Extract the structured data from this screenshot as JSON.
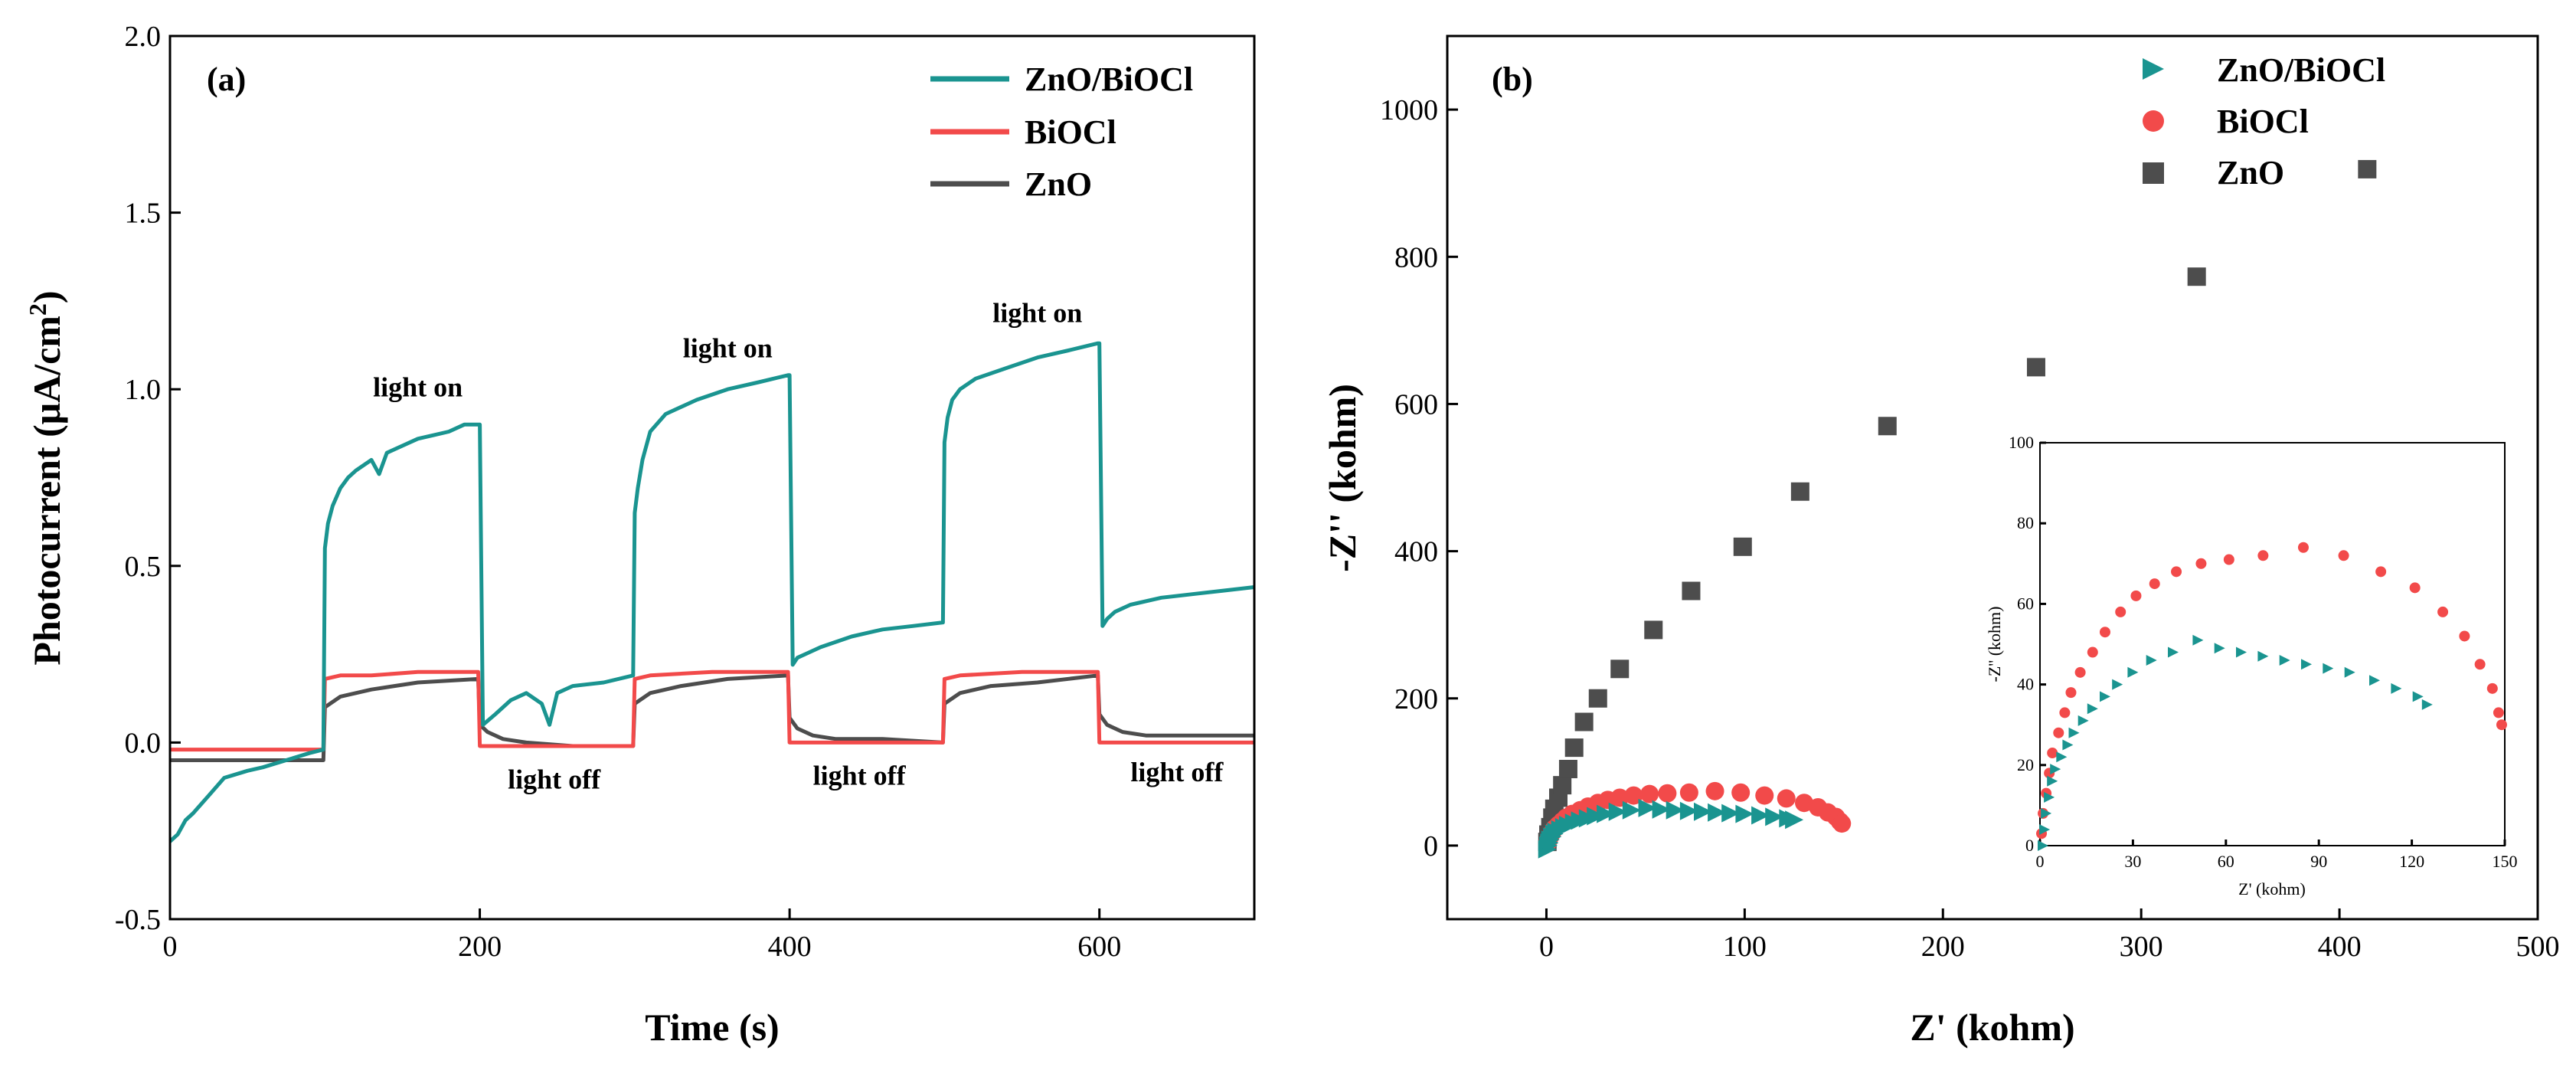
{
  "colors": {
    "zno_biocl": "#1a9490",
    "biocl": "#f24a4a",
    "zno": "#4d4d4d"
  },
  "chart_data": [
    {
      "type": "line",
      "panel_label": "(a)",
      "xlabel": "Time (s)",
      "ylabel_main": "Photocurrent (μA/cm",
      "ylabel_sup": "2",
      "ylabel_end": ")",
      "xlim": [
        0,
        700
      ],
      "ylim": [
        -0.5,
        2.0
      ],
      "xticks": [
        0,
        200,
        400,
        600
      ],
      "xtick_labels": [
        "0",
        "200",
        "400",
        "600"
      ],
      "yticks": [
        -0.5,
        0.0,
        0.5,
        1.0,
        1.5,
        2.0
      ],
      "ytick_labels": [
        "-0.5",
        "0.0",
        "0.5",
        "1.0",
        "1.5",
        "2.0"
      ],
      "legend": [
        "ZnO/BiOCl",
        "BiOCl",
        "ZnO"
      ],
      "annotations": [
        {
          "text": "light on",
          "x": 160,
          "y": 0.98
        },
        {
          "text": "light on",
          "x": 360,
          "y": 1.09
        },
        {
          "text": "light on",
          "x": 560,
          "y": 1.19
        },
        {
          "text": "light off",
          "x": 248,
          "y": -0.13
        },
        {
          "text": "light off",
          "x": 445,
          "y": -0.12
        },
        {
          "text": "light off",
          "x": 650,
          "y": -0.11
        }
      ],
      "series": [
        {
          "name": "ZnO/BiOCl",
          "x": [
            0,
            5,
            10,
            15,
            25,
            35,
            50,
            60,
            75,
            90,
            99,
            100,
            102,
            105,
            110,
            115,
            120,
            130,
            135,
            140,
            150,
            160,
            170,
            180,
            190,
            199,
            200,
            202,
            210,
            220,
            230,
            240,
            245,
            250,
            260,
            280,
            299,
            300,
            302,
            305,
            310,
            320,
            340,
            360,
            380,
            399,
            400,
            402,
            405,
            410,
            420,
            440,
            460,
            480,
            499,
            500,
            502,
            505,
            510,
            520,
            540,
            560,
            580,
            599,
            600,
            602,
            605,
            610,
            620,
            640,
            660,
            680,
            700
          ],
          "y": [
            -0.28,
            -0.26,
            -0.22,
            -0.2,
            -0.15,
            -0.1,
            -0.08,
            -0.07,
            -0.05,
            -0.03,
            -0.02,
            0.55,
            0.62,
            0.67,
            0.72,
            0.75,
            0.77,
            0.8,
            0.76,
            0.82,
            0.84,
            0.86,
            0.87,
            0.88,
            0.9,
            0.9,
            0.9,
            0.05,
            0.08,
            0.12,
            0.14,
            0.11,
            0.05,
            0.14,
            0.16,
            0.17,
            0.19,
            0.65,
            0.72,
            0.8,
            0.88,
            0.93,
            0.97,
            1.0,
            1.02,
            1.04,
            1.04,
            0.22,
            0.24,
            0.25,
            0.27,
            0.3,
            0.32,
            0.33,
            0.34,
            0.85,
            0.92,
            0.97,
            1.0,
            1.03,
            1.06,
            1.09,
            1.11,
            1.13,
            1.13,
            0.33,
            0.35,
            0.37,
            0.39,
            0.41,
            0.42,
            0.43,
            0.44
          ]
        },
        {
          "name": "BiOCl",
          "x": [
            0,
            50,
            99,
            100,
            110,
            130,
            160,
            199,
            200,
            210,
            250,
            299,
            300,
            310,
            350,
            399,
            400,
            410,
            450,
            499,
            500,
            510,
            550,
            599,
            600,
            610,
            650,
            700
          ],
          "y": [
            -0.02,
            -0.02,
            -0.02,
            0.18,
            0.19,
            0.19,
            0.2,
            0.2,
            -0.01,
            -0.01,
            -0.01,
            -0.01,
            0.18,
            0.19,
            0.2,
            0.2,
            0.0,
            0.0,
            0.0,
            0.0,
            0.18,
            0.19,
            0.2,
            0.2,
            0.0,
            0.0,
            0.0,
            0.0
          ]
        },
        {
          "name": "ZnO",
          "x": [
            0,
            50,
            99,
            100,
            110,
            130,
            160,
            199,
            200,
            205,
            215,
            230,
            260,
            299,
            300,
            310,
            330,
            360,
            399,
            400,
            405,
            415,
            430,
            460,
            499,
            500,
            510,
            530,
            560,
            599,
            600,
            605,
            615,
            630,
            660,
            700
          ],
          "y": [
            -0.05,
            -0.05,
            -0.05,
            0.1,
            0.13,
            0.15,
            0.17,
            0.18,
            0.05,
            0.03,
            0.01,
            0.0,
            -0.01,
            -0.01,
            0.11,
            0.14,
            0.16,
            0.18,
            0.19,
            0.07,
            0.04,
            0.02,
            0.01,
            0.01,
            0.0,
            0.11,
            0.14,
            0.16,
            0.17,
            0.19,
            0.08,
            0.05,
            0.03,
            0.02,
            0.02,
            0.02
          ]
        }
      ]
    },
    {
      "type": "scatter",
      "panel_label": "(b)",
      "xlabel": "Z' (kohm)",
      "ylabel": "-Z'' (kohm)",
      "xlim": [
        -50,
        500
      ],
      "ylim": [
        -100,
        1100
      ],
      "xticks": [
        0,
        100,
        200,
        300,
        400,
        500
      ],
      "xtick_labels": [
        "0",
        "100",
        "200",
        "300",
        "400",
        "500"
      ],
      "yticks": [
        0,
        200,
        400,
        600,
        800,
        1000
      ],
      "ytick_labels": [
        "0",
        "200",
        "400",
        "600",
        "800",
        "1000"
      ],
      "legend": [
        "ZnO/BiOCl",
        "BiOCl",
        "ZnO"
      ],
      "series": [
        {
          "name": "ZnO",
          "x": [
            0.5,
            1,
            2,
            3,
            4,
            6,
            8,
            11,
            14,
            19,
            26,
            37,
            54,
            73,
            99,
            128,
            172,
            247,
            328,
            414
          ],
          "y": [
            5,
            15,
            25,
            38,
            50,
            65,
            82,
            104,
            133,
            168,
            200,
            240,
            293,
            346,
            406,
            481,
            570,
            650,
            773,
            919
          ]
        },
        {
          "name": "BiOCl",
          "x": [
            0.5,
            1,
            2,
            3,
            4,
            6,
            8,
            10,
            13,
            17,
            21,
            26,
            31,
            37,
            44,
            52,
            61,
            72,
            85,
            98,
            110,
            121,
            130,
            137,
            142,
            146,
            148,
            149
          ],
          "y": [
            3,
            8,
            13,
            18,
            23,
            28,
            33,
            38,
            43,
            48,
            53,
            58,
            62,
            65,
            68,
            70,
            71,
            72,
            74,
            72,
            68,
            64,
            58,
            52,
            45,
            39,
            33,
            30
          ]
        },
        {
          "name": "ZnO/BiOCl",
          "x": [
            0.5,
            1,
            1.5,
            2,
            3,
            4,
            5,
            7,
            9,
            11,
            14,
            17,
            21,
            25,
            30,
            36,
            43,
            51,
            58,
            65,
            72,
            79,
            86,
            93,
            100,
            108,
            115,
            122,
            125
          ],
          "y": [
            -5,
            0,
            4,
            8,
            12,
            16,
            19,
            22,
            25,
            28,
            31,
            34,
            37,
            40,
            43,
            46,
            48,
            51,
            49,
            48,
            47,
            46,
            45,
            44,
            43,
            41,
            39,
            37,
            35
          ]
        }
      ],
      "inset": {
        "xlabel": "Z' (kohm)",
        "ylabel": "-Z'' (kohm)",
        "xlim": [
          0,
          150
        ],
        "ylim": [
          0,
          100
        ],
        "xticks": [
          0,
          30,
          60,
          90,
          120,
          150
        ],
        "xtick_labels": [
          "0",
          "30",
          "60",
          "90",
          "120",
          "150"
        ],
        "yticks": [
          0,
          20,
          40,
          60,
          80,
          100
        ],
        "ytick_labels": [
          "0",
          "20",
          "40",
          "60",
          "80",
          "100"
        ]
      }
    }
  ]
}
